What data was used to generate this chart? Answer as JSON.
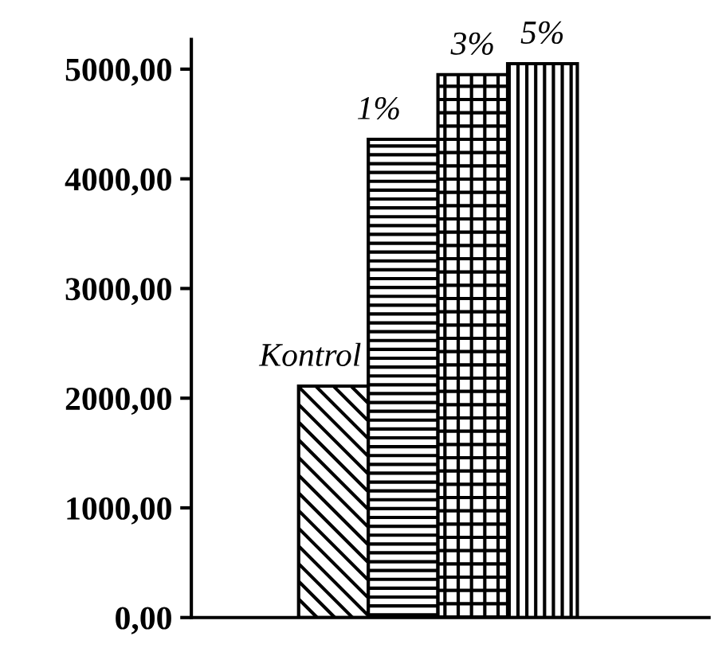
{
  "chart_data": {
    "type": "bar",
    "categories": [
      "Kontrol",
      "1%",
      "3%",
      "5%"
    ],
    "values": [
      2110,
      4360,
      4950,
      5050
    ],
    "color": "#000000",
    "ylim": [
      0,
      5270
    ],
    "yticks": [
      {
        "value": 0,
        "label": "0,00"
      },
      {
        "value": 1000,
        "label": "1000,00"
      },
      {
        "value": 2000,
        "label": "2000,00"
      },
      {
        "value": 3000,
        "label": "3000,00"
      },
      {
        "value": 4000,
        "label": "4000,00"
      },
      {
        "value": 5000,
        "label": "5000,00"
      }
    ],
    "tick_labels": "y",
    "grid": false,
    "legend": false
  }
}
